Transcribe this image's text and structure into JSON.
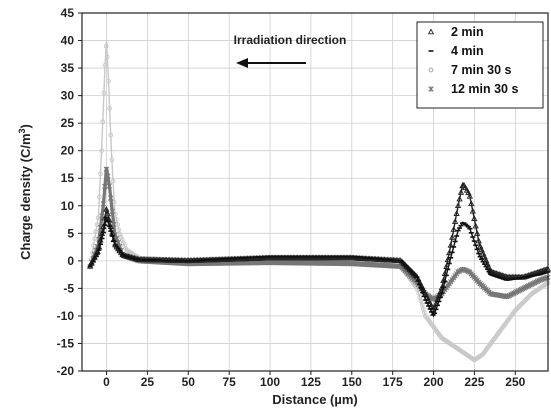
{
  "chart_data": {
    "type": "line",
    "xlabel": "Distance (µm)",
    "ylabel": "Charge density  (C/m",
    "ylabel_sup": "3",
    "ylabel_close": ")",
    "xlim": [
      -15,
      270
    ],
    "ylim": [
      -20,
      45
    ],
    "x_ticks": [
      "0",
      "25",
      "50",
      "75",
      "100",
      "125",
      "150",
      "175",
      "200",
      "225",
      "250"
    ],
    "x_tick_values": [
      0,
      25,
      50,
      75,
      100,
      125,
      150,
      175,
      200,
      225,
      250
    ],
    "y_ticks": [
      "-20",
      "-15",
      "-10",
      "-5",
      "0",
      "5",
      "10",
      "15",
      "20",
      "25",
      "30",
      "35",
      "40",
      "45"
    ],
    "y_tick_values": [
      -20,
      -15,
      -10,
      -5,
      0,
      5,
      10,
      15,
      20,
      25,
      30,
      35,
      40,
      45
    ],
    "annotation": "Irradiation direction",
    "legend_position": "top-right",
    "series": [
      {
        "name": "2 min",
        "marker": "triangle",
        "color": "#222222",
        "x": [
          -10,
          -5,
          -2,
          0,
          2,
          5,
          10,
          20,
          50,
          100,
          150,
          180,
          190,
          195,
          200,
          205,
          210,
          215,
          218,
          222,
          228,
          235,
          245,
          255,
          265,
          270
        ],
        "y": [
          -1,
          2,
          6,
          9.5,
          7,
          3,
          1,
          0.2,
          0,
          0.5,
          0.5,
          0,
          -3,
          -6,
          -9,
          -5,
          2,
          10,
          14,
          12,
          3,
          -2,
          -3,
          -3,
          -2,
          -1.5
        ]
      },
      {
        "name": "4 min",
        "marker": "dash",
        "color": "#111111",
        "x": [
          -10,
          -5,
          -2,
          0,
          2,
          5,
          10,
          20,
          50,
          100,
          150,
          180,
          190,
          195,
          200,
          205,
          210,
          215,
          218,
          222,
          228,
          235,
          245,
          255,
          265,
          270
        ],
        "y": [
          -1,
          1.5,
          5,
          8,
          6,
          3,
          1,
          0.2,
          0,
          0.8,
          0.8,
          0,
          -3,
          -7,
          -10,
          -6,
          0,
          5.5,
          7,
          6,
          1,
          -2.5,
          -3.5,
          -3,
          -2.5,
          -2
        ]
      },
      {
        "name": "7 min 30 s",
        "marker": "circle",
        "color": "#c8c8c8",
        "x": [
          -10,
          -5,
          -3,
          -1,
          0,
          1,
          3,
          5,
          8,
          12,
          20,
          50,
          100,
          150,
          180,
          190,
          195,
          200,
          205,
          210,
          220,
          225,
          230,
          240,
          250,
          260,
          270
        ],
        "y": [
          -1,
          8,
          20,
          35,
          40,
          34,
          20,
          9,
          5,
          2,
          0.5,
          0,
          0.2,
          0,
          -1,
          -5,
          -10,
          -12,
          -14,
          -15,
          -17,
          -18,
          -17,
          -13,
          -9,
          -6,
          -4
        ]
      },
      {
        "name": "12 min 30 s",
        "marker": "star",
        "color": "#777777",
        "x": [
          -10,
          -5,
          -2,
          0,
          2,
          5,
          10,
          20,
          50,
          100,
          150,
          180,
          190,
          195,
          200,
          205,
          210,
          215,
          218,
          222,
          228,
          235,
          245,
          255,
          265,
          270
        ],
        "y": [
          -1,
          3,
          10,
          17,
          13,
          5,
          1,
          0,
          -0.5,
          -0.3,
          -0.5,
          -1,
          -4,
          -6,
          -7,
          -6,
          -4,
          -2,
          -1.5,
          -2,
          -4,
          -6,
          -6.5,
          -5,
          -3.5,
          -3
        ]
      }
    ]
  }
}
